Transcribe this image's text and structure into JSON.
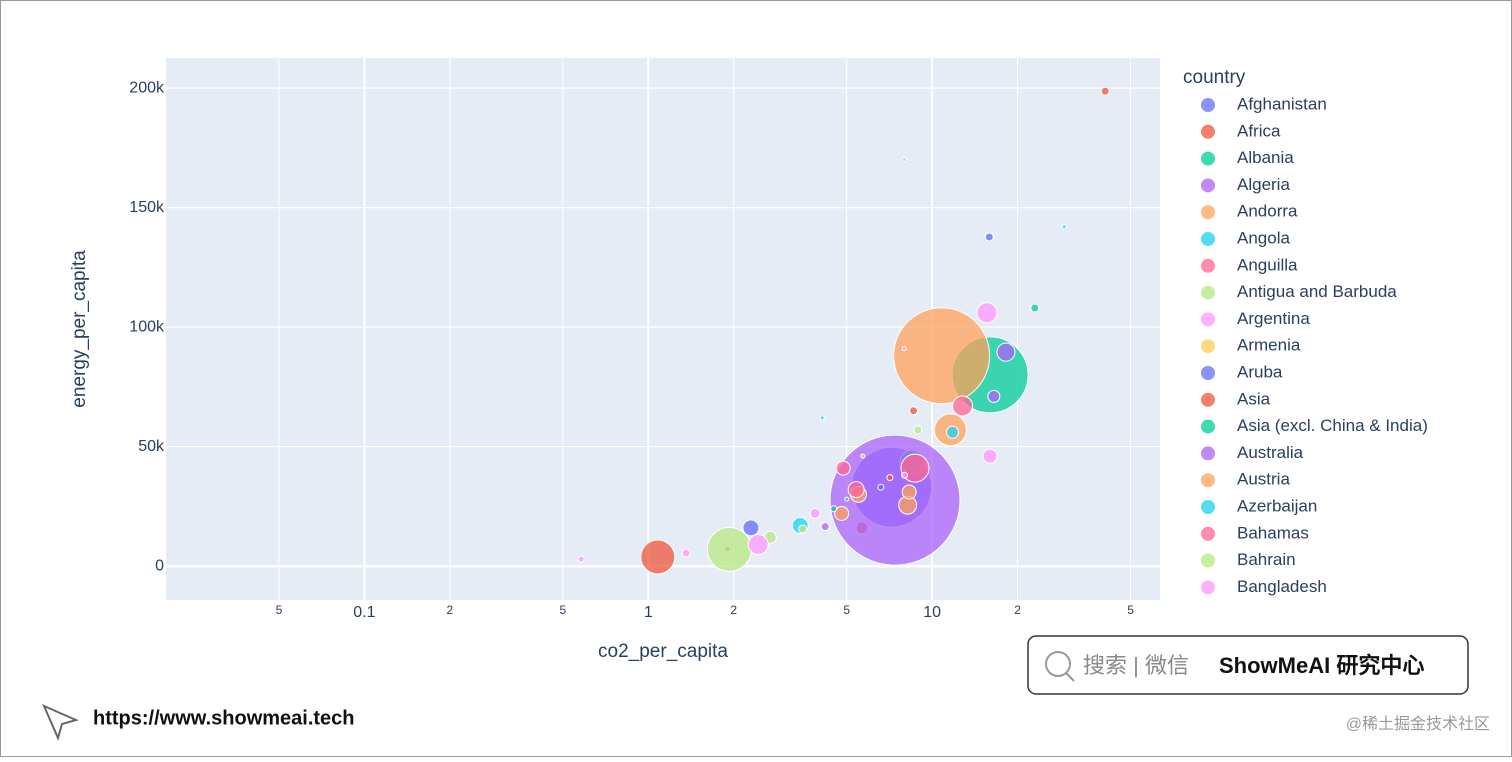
{
  "chart_data": {
    "type": "scatter",
    "log_x": true,
    "grid": true,
    "xlabel": "co2_per_capita",
    "ylabel": "energy_per_capita",
    "legend_title": "country",
    "legend_position": "right",
    "xlim": [
      0.02,
      63.5
    ],
    "ylim": [
      -14200,
      212600
    ],
    "xticks": [
      {
        "value": 0.05,
        "label": "5"
      },
      0.1,
      {
        "value": 0.2,
        "label": "2"
      },
      {
        "value": 0.5,
        "label": "5"
      },
      1,
      {
        "value": 2,
        "label": "2"
      },
      {
        "value": 5,
        "label": "5"
      },
      10,
      {
        "value": 20,
        "label": "2"
      },
      {
        "value": 50,
        "label": "5"
      }
    ],
    "yticks": [
      0,
      {
        "value": 50000,
        "label": "50k"
      },
      {
        "value": 100000,
        "label": "100k"
      },
      {
        "value": 150000,
        "label": "150k"
      },
      {
        "value": 200000,
        "label": "200k"
      }
    ],
    "series": [
      {
        "name": "Afghanistan",
        "color": "#636efa",
        "x": [
          7.2,
          2.3,
          15.9
        ],
        "values": [
          33000,
          16000,
          137700
        ],
        "sizes": [
          1600,
          64,
          16
        ]
      },
      {
        "name": "Africa",
        "color": "#ef553b",
        "x": [
          1.08,
          5.66,
          40.7,
          8.6,
          1.9
        ],
        "values": [
          3800,
          16000,
          198700,
          65000,
          7200
        ],
        "sizes": [
          289,
          36,
          16,
          16,
          9
        ]
      },
      {
        "name": "Albania",
        "color": "#00cc96",
        "x": [
          16,
          23,
          8.5
        ],
        "values": [
          80000,
          108000,
          43500
        ],
        "sizes": [
          1444,
          16,
          144
        ]
      },
      {
        "name": "Algeria",
        "color": "#ab63fa",
        "x": [
          7.4,
          18.2,
          4.2
        ],
        "values": [
          27600,
          89500,
          16500
        ],
        "sizes": [
          4225,
          81,
          16
        ]
      },
      {
        "name": "Andorra",
        "color": "#ffa15a",
        "x": [
          10.8,
          11.6,
          8.2,
          4.8,
          5.5
        ],
        "values": [
          88000,
          57000,
          25500,
          22000,
          30000
        ],
        "sizes": [
          2304,
          256,
          81,
          49,
          64
        ]
      },
      {
        "name": "Angola",
        "color": "#19d3f3",
        "x": [
          3.43,
          11.8,
          29.2,
          4.1
        ],
        "values": [
          17000,
          56000,
          142000,
          62000
        ],
        "sizes": [
          64,
          36,
          4,
          4
        ]
      },
      {
        "name": "Anguilla",
        "color": "#ff6692",
        "x": [
          12.8,
          8.7,
          5.4
        ],
        "values": [
          67000,
          41000,
          32000
        ],
        "sizes": [
          100,
          196,
          64
        ]
      },
      {
        "name": "Antigua and Barbuda",
        "color": "#b6e880",
        "x": [
          1.93,
          2.69,
          8.9
        ],
        "values": [
          7000,
          12000,
          57000
        ],
        "sizes": [
          484,
          36,
          16
        ]
      },
      {
        "name": "Argentina",
        "color": "#ff97ff",
        "x": [
          2.44,
          15.6,
          16,
          1.36,
          0.58,
          3.87,
          7.97,
          7.97
        ],
        "values": [
          9000,
          106000,
          46000,
          5400,
          2900,
          22000,
          170000,
          91000
        ],
        "sizes": [
          100,
          100,
          49,
          16,
          9,
          25,
          4,
          4
        ]
      },
      {
        "name": "Armenia",
        "color": "#fecb52",
        "x": [
          5.7
        ],
        "values": [
          46000
        ],
        "sizes": [
          4
        ]
      },
      {
        "name": "Aruba",
        "color": "#636efa",
        "x": [
          6.6
        ],
        "values": [
          33000
        ],
        "sizes": [
          9
        ]
      },
      {
        "name": "Asia",
        "color": "#ef553b",
        "x": [
          7.1
        ],
        "values": [
          37000
        ],
        "sizes": [
          9
        ]
      },
      {
        "name": "Asia (excl. China & India)",
        "color": "#00cc96",
        "x": [
          4.5
        ],
        "values": [
          24000
        ],
        "sizes": [
          9
        ]
      },
      {
        "name": "Australia",
        "color": "#ab63fa",
        "x": [
          16.5
        ],
        "values": [
          71000
        ],
        "sizes": [
          36
        ]
      },
      {
        "name": "Austria",
        "color": "#ffa15a",
        "x": [
          8.3
        ],
        "values": [
          31000
        ],
        "sizes": [
          49
        ]
      },
      {
        "name": "Azerbaijan",
        "color": "#19d3f3",
        "x": [
          5.0
        ],
        "values": [
          28000
        ],
        "sizes": [
          4
        ]
      },
      {
        "name": "Bahamas",
        "color": "#ff6692",
        "x": [
          4.86
        ],
        "values": [
          41000
        ],
        "sizes": [
          49
        ]
      },
      {
        "name": "Bahrain",
        "color": "#b6e880",
        "x": [
          3.5
        ],
        "values": [
          15500
        ],
        "sizes": [
          16
        ]
      },
      {
        "name": "Bangladesh",
        "color": "#ff97ff",
        "x": [
          8.0
        ],
        "values": [
          38000
        ],
        "sizes": [
          9
        ]
      }
    ]
  },
  "watermarks": {
    "search": "搜索 | 微信",
    "brand": "ShowMeAI 研究中心",
    "url": "https://www.showmeai.tech",
    "source": "@稀土掘金技术社区"
  }
}
